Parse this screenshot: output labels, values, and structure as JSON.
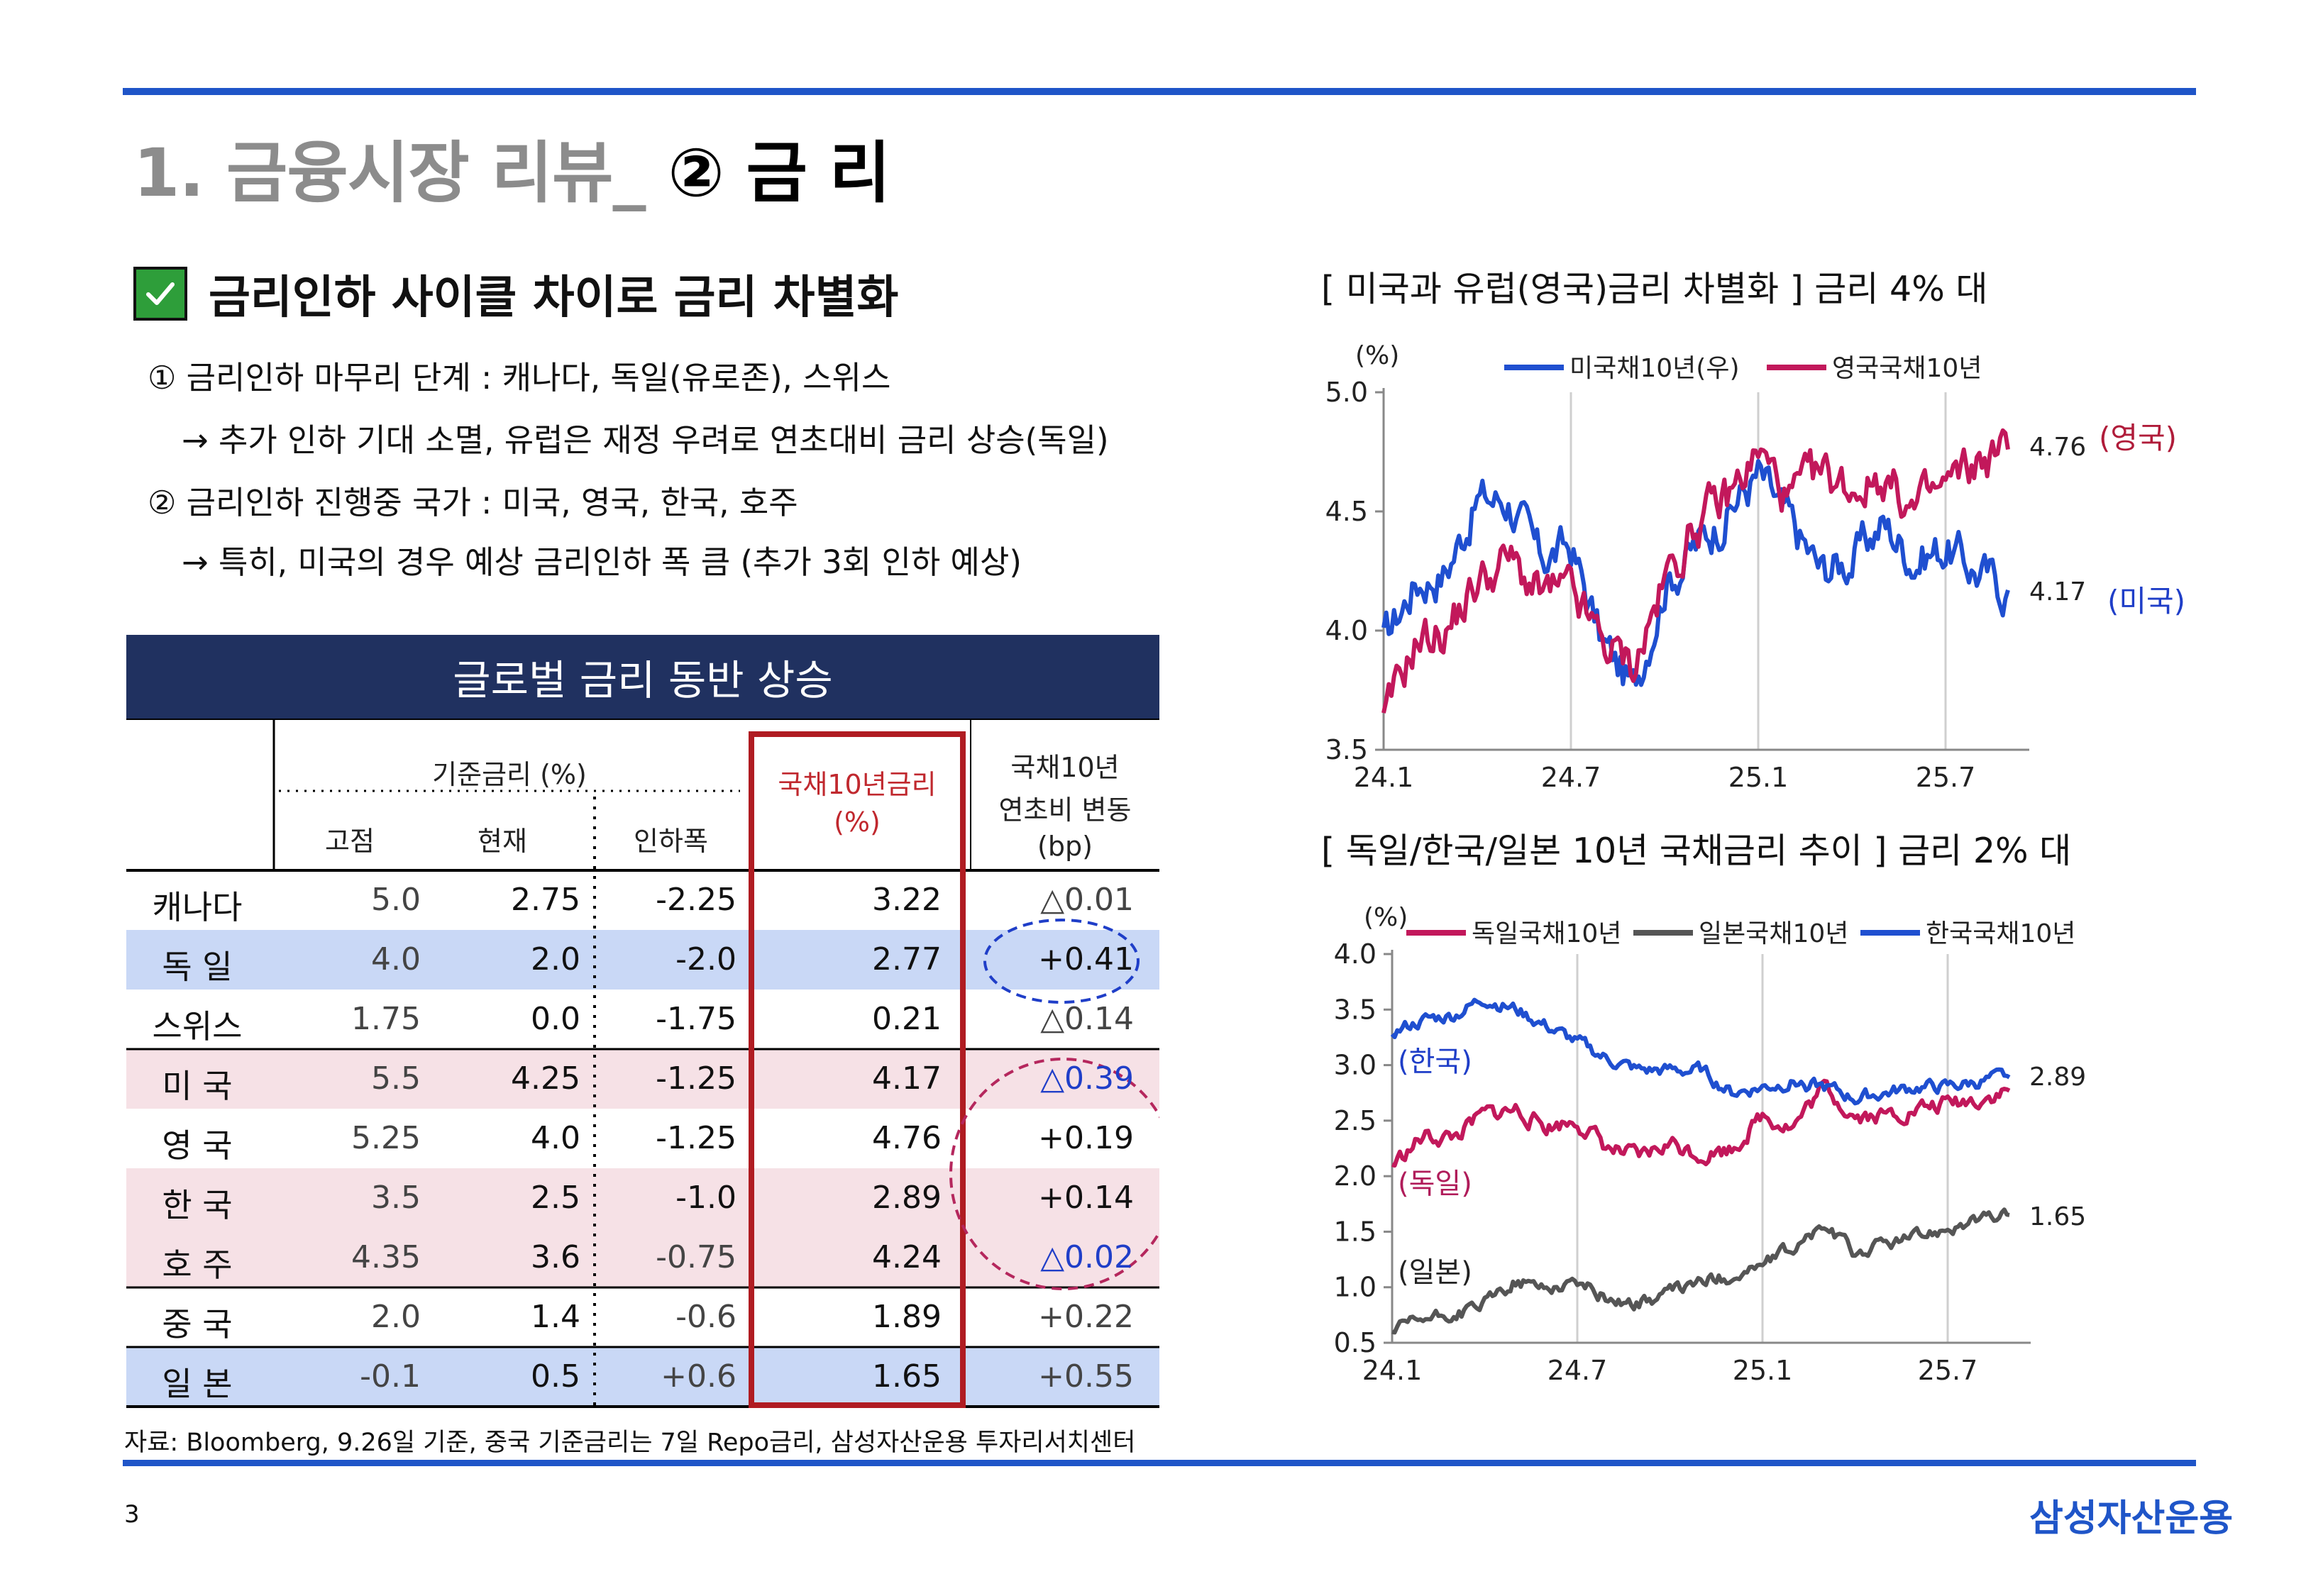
{
  "title": {
    "prefix": "1. 금융시장 리뷰_",
    "suffix": "② 금 리"
  },
  "headline": "금리인하 사이클 차이로 금리 차별화",
  "bullets": [
    "① 금리인하 마무리  단계 : 캐나다, 독일(유로존), 스위스",
    "→ 추가 인하 기대 소멸, 유럽은 재정 우려로 연초대비 금리 상승(독일)",
    "② 금리인하  진행중 국가 : 미국, 영국, 한국, 호주",
    "→ 특히, 미국의 경우  예상 금리인하 폭 큼 (추가 3회 인하 예상)"
  ],
  "table": {
    "banner": "글로벌 금리 동반 상승",
    "headers": {
      "policy_group": "기준금리 (%)",
      "peak": "고점",
      "current": "현재",
      "cut": "인하폭",
      "y10_line1": "국채10년금리",
      "y10_line2": "(%)",
      "chg_line1": "국채10년",
      "chg_line2": "연초비 변동",
      "chg_line3": "(bp)"
    },
    "rows": [
      {
        "country": "캐나다",
        "peak": "5.0",
        "current": "2.75",
        "cut": "-2.25",
        "y10": "3.22",
        "chg": "△0.01"
      },
      {
        "country": "독  일",
        "peak": "4.0",
        "current": "2.0",
        "cut": "-2.0",
        "y10": "2.77",
        "chg": "+0.41"
      },
      {
        "country": "스위스",
        "peak": "1.75",
        "current": "0.0",
        "cut": "-1.75",
        "y10": "0.21",
        "chg": "△0.14"
      },
      {
        "country": "미  국",
        "peak": "5.5",
        "current": "4.25",
        "cut": "-1.25",
        "y10": "4.17",
        "chg": "△0.39"
      },
      {
        "country": "영  국",
        "peak": "5.25",
        "current": "4.0",
        "cut": "-1.25",
        "y10": "4.76",
        "chg": "+0.19"
      },
      {
        "country": "한  국",
        "peak": "3.5",
        "current": "2.5",
        "cut": "-1.0",
        "y10": "2.89",
        "chg": "+0.14"
      },
      {
        "country": "호  주",
        "peak": "4.35",
        "current": "3.6",
        "cut": "-0.75",
        "y10": "4.24",
        "chg": "△0.02"
      },
      {
        "country": "중  국",
        "peak": "2.0",
        "current": "1.4",
        "cut": "-0.6",
        "y10": "1.89",
        "chg": "+0.22"
      },
      {
        "country": "일  본",
        "peak": "-0.1",
        "current": "0.5",
        "cut": "+0.6",
        "y10": "1.65",
        "chg": "+0.55"
      }
    ]
  },
  "source_note": "자료: Bloomberg, 9.26일 기준, 중국 기준금리는 7일 Repo금리, 삼성자산운용 투자리서치센터",
  "page_number": "3",
  "brand": "삼성자산운용",
  "colors": {
    "accent_blue": "#1f55c8",
    "banner_navy": "#203160",
    "uk_line": "#c2185b",
    "us_line": "#1f4fd0",
    "jp_line": "#555555",
    "highlight_red": "#b01c22"
  },
  "chart_data": [
    {
      "type": "line",
      "title": "[ 미국과 유럽(영국)금리 차별화 ] 금리 4% 대",
      "unit_label": "(%)",
      "x_ticks": [
        "24.1",
        "24.7",
        "25.1",
        "25.7"
      ],
      "y_ticks": [
        "5.0",
        "4.5",
        "4.0",
        "3.5"
      ],
      "ylim": [
        3.5,
        5.0
      ],
      "x": [
        "24.1",
        "24.2",
        "24.3",
        "24.4",
        "24.5",
        "24.6",
        "24.7",
        "24.8",
        "24.9",
        "24.10",
        "24.11",
        "24.12",
        "25.1",
        "25.2",
        "25.3",
        "25.4",
        "25.5",
        "25.6",
        "25.7",
        "25.8",
        "25.9"
      ],
      "series": [
        {
          "name": "미국채10년(우)",
          "values": [
            3.95,
            4.2,
            4.25,
            4.55,
            4.55,
            4.3,
            4.35,
            3.95,
            3.75,
            4.2,
            4.35,
            4.5,
            4.65,
            4.45,
            4.25,
            4.3,
            4.45,
            4.3,
            4.35,
            4.25,
            4.17
          ]
        },
        {
          "name": "영국국채10년",
          "values": [
            3.6,
            3.95,
            4.0,
            4.2,
            4.3,
            4.15,
            4.15,
            3.95,
            3.85,
            4.2,
            4.45,
            4.55,
            4.75,
            4.55,
            4.65,
            4.6,
            4.65,
            4.5,
            4.6,
            4.7,
            4.76
          ]
        }
      ],
      "end_labels": [
        {
          "value": "4.76",
          "tag": "(영국)"
        },
        {
          "value": "4.17",
          "tag": "(미국)"
        }
      ]
    },
    {
      "type": "line",
      "title": "[ 독일/한국/일본 10년 국채금리 추이  ] 금리 2% 대",
      "unit_label": "(%)",
      "x_ticks": [
        "24.1",
        "24.7",
        "25.1",
        "25.7"
      ],
      "y_ticks": [
        "4.0",
        "3.5",
        "3.0",
        "2.5",
        "2.0",
        "1.5",
        "1.0",
        "0.5"
      ],
      "ylim": [
        0.5,
        4.0
      ],
      "x": [
        "24.1",
        "24.2",
        "24.3",
        "24.4",
        "24.5",
        "24.6",
        "24.7",
        "24.8",
        "24.9",
        "24.10",
        "24.11",
        "24.12",
        "25.1",
        "25.2",
        "25.3",
        "25.4",
        "25.5",
        "25.6",
        "25.7",
        "25.8",
        "25.9"
      ],
      "series": [
        {
          "name": "독일국채10년",
          "values": [
            2.1,
            2.35,
            2.35,
            2.55,
            2.6,
            2.45,
            2.5,
            2.25,
            2.15,
            2.3,
            2.2,
            2.25,
            2.55,
            2.45,
            2.8,
            2.55,
            2.55,
            2.6,
            2.65,
            2.7,
            2.77
          ]
        },
        {
          "name": "일본국채10년",
          "values": [
            0.6,
            0.7,
            0.75,
            0.85,
            1.05,
            1.0,
            1.05,
            0.9,
            0.85,
            0.95,
            1.05,
            1.1,
            1.2,
            1.35,
            1.55,
            1.3,
            1.4,
            1.45,
            1.55,
            1.6,
            1.65
          ]
        },
        {
          "name": "한국국채10년",
          "values": [
            3.3,
            3.4,
            3.45,
            3.6,
            3.5,
            3.35,
            3.2,
            3.05,
            2.95,
            2.95,
            2.95,
            2.75,
            2.8,
            2.85,
            2.8,
            2.7,
            2.75,
            2.8,
            2.8,
            2.85,
            2.89
          ]
        }
      ],
      "end_labels": [
        {
          "value": "2.89"
        },
        {
          "value": "1.65"
        }
      ],
      "series_tags": [
        "(한국)",
        "(독일)",
        "(일본)"
      ]
    }
  ]
}
